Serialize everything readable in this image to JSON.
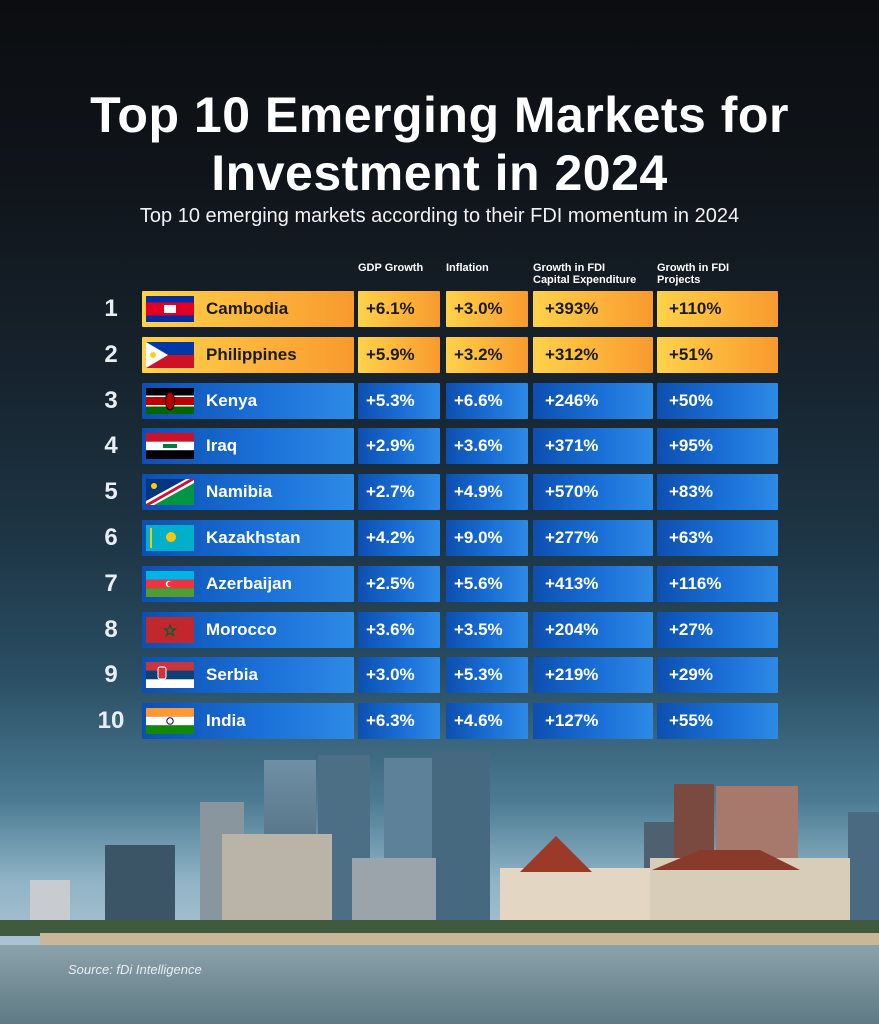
{
  "title": "Top 10 Emerging Markets for Investment in 2024",
  "subtitle": "Top 10 emerging markets according to their FDI momentum in 2024",
  "source": "Source: fDi Intelligence",
  "colors": {
    "highlight": "#fdb33a",
    "row": "#1a6fd6"
  },
  "chart_data": {
    "type": "table",
    "columns": [
      "GDP Growth",
      "Inflation",
      "Growth in FDI Capital Expenditure",
      "Growth in FDI Projects"
    ],
    "column_labels": {
      "gdp": "GDP Growth",
      "inflation": "Inflation",
      "capex_line1": "Growth in FDI",
      "capex_line2": "Capital Expenditure",
      "projects_line1": "Growth in FDI",
      "projects_line2": "Projects"
    },
    "rows": [
      {
        "rank": "1",
        "country": "Cambodia",
        "flag": "cambodia-flag-icon",
        "gdp": "+6.1%",
        "inflation": "+3.0%",
        "capex": "+393%",
        "projects": "+110%",
        "highlight": true
      },
      {
        "rank": "2",
        "country": "Philippines",
        "flag": "philippines-flag-icon",
        "gdp": "+5.9%",
        "inflation": "+3.2%",
        "capex": "+312%",
        "projects": "+51%",
        "highlight": true
      },
      {
        "rank": "3",
        "country": "Kenya",
        "flag": "kenya-flag-icon",
        "gdp": "+5.3%",
        "inflation": "+6.6%",
        "capex": "+246%",
        "projects": "+50%",
        "highlight": false
      },
      {
        "rank": "4",
        "country": "Iraq",
        "flag": "iraq-flag-icon",
        "gdp": "+2.9%",
        "inflation": "+3.6%",
        "capex": "+371%",
        "projects": "+95%",
        "highlight": false
      },
      {
        "rank": "5",
        "country": "Namibia",
        "flag": "namibia-flag-icon",
        "gdp": "+2.7%",
        "inflation": "+4.9%",
        "capex": "+570%",
        "projects": "+83%",
        "highlight": false
      },
      {
        "rank": "6",
        "country": "Kazakhstan",
        "flag": "kazakhstan-flag-icon",
        "gdp": "+4.2%",
        "inflation": "+9.0%",
        "capex": "+277%",
        "projects": "+63%",
        "highlight": false
      },
      {
        "rank": "7",
        "country": "Azerbaijan",
        "flag": "azerbaijan-flag-icon",
        "gdp": "+2.5%",
        "inflation": "+5.6%",
        "capex": "+413%",
        "projects": "+116%",
        "highlight": false
      },
      {
        "rank": "8",
        "country": "Morocco",
        "flag": "morocco-flag-icon",
        "gdp": "+3.6%",
        "inflation": "+3.5%",
        "capex": "+204%",
        "projects": "+27%",
        "highlight": false
      },
      {
        "rank": "9",
        "country": "Serbia",
        "flag": "serbia-flag-icon",
        "gdp": "+3.0%",
        "inflation": "+5.3%",
        "capex": "+219%",
        "projects": "+29%",
        "highlight": false
      },
      {
        "rank": "10",
        "country": "India",
        "flag": "india-flag-icon",
        "gdp": "+6.3%",
        "inflation": "+4.6%",
        "capex": "+127%",
        "projects": "+55%",
        "highlight": false
      }
    ]
  }
}
